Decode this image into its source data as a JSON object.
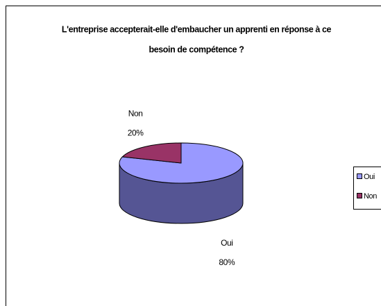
{
  "chart_data": {
    "type": "pie3d",
    "title_lines": [
      "L'entreprise accepterait-elle d'embaucher un apprenti en réponse à ce",
      "besoin de compétence ?"
    ],
    "categories": [
      "Oui",
      "Non"
    ],
    "values": [
      80,
      20
    ],
    "value_labels": [
      "80%",
      "20%"
    ],
    "colors": [
      "#9999ff",
      "#993366"
    ],
    "side_colors": [
      "#555594",
      "#5c1f3d"
    ],
    "legend": "right"
  }
}
